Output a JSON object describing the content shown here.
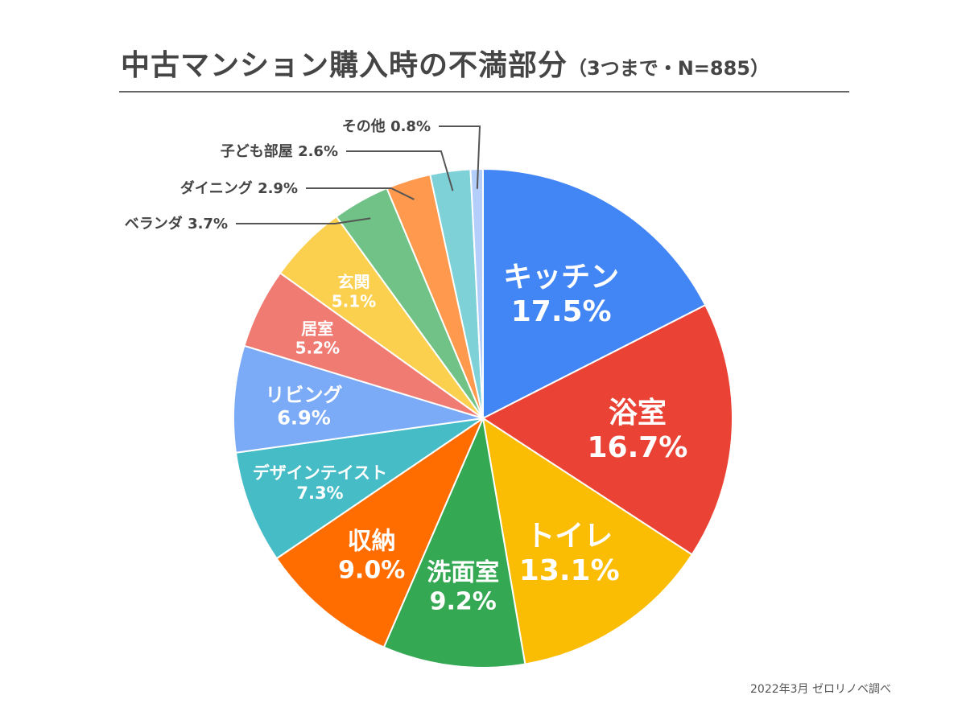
{
  "chart_data": {
    "type": "pie",
    "title": "中古マンション購入時の不満部分",
    "subtitle": "（3つまで・N=885）",
    "unit": "%",
    "slices": [
      {
        "label": "キッチン",
        "value": 17.5,
        "value_text": "17.5%",
        "color": "#4285F4",
        "label_style": "inside"
      },
      {
        "label": "浴室",
        "value": 16.7,
        "value_text": "16.7%",
        "color": "#EA4335",
        "label_style": "inside"
      },
      {
        "label": "トイレ",
        "value": 13.1,
        "value_text": "13.1%",
        "color": "#FBBC04",
        "label_style": "inside"
      },
      {
        "label": "洗面室",
        "value": 9.2,
        "value_text": "9.2%",
        "color": "#34A853",
        "label_style": "inside"
      },
      {
        "label": "収納",
        "value": 9.0,
        "value_text": "9.0%",
        "color": "#FF6D01",
        "label_style": "inside"
      },
      {
        "label": "デザインテイスト",
        "value": 7.3,
        "value_text": "7.3%",
        "color": "#46BDC6",
        "label_style": "inside"
      },
      {
        "label": "リビング",
        "value": 6.9,
        "value_text": "6.9%",
        "color": "#7BAAF7",
        "label_style": "inside"
      },
      {
        "label": "居室",
        "value": 5.2,
        "value_text": "5.2%",
        "color": "#F07B72",
        "label_style": "inside"
      },
      {
        "label": "玄関",
        "value": 5.1,
        "value_text": "5.1%",
        "color": "#FCD04F",
        "label_style": "inside"
      },
      {
        "label": "ベランダ",
        "value": 3.7,
        "value_text": "3.7%",
        "color": "#71C287",
        "label_style": "outside"
      },
      {
        "label": "ダイニング",
        "value": 2.9,
        "value_text": "2.9%",
        "color": "#FF994D",
        "label_style": "outside"
      },
      {
        "label": "子ども部屋",
        "value": 2.6,
        "value_text": "2.6%",
        "color": "#7ED1D7",
        "label_style": "outside"
      },
      {
        "label": "その他",
        "value": 0.8,
        "value_text": "0.8%",
        "color": "#B3CEFB",
        "label_style": "outside"
      }
    ]
  },
  "source": "2022年3月  ゼロリノベ調べ"
}
